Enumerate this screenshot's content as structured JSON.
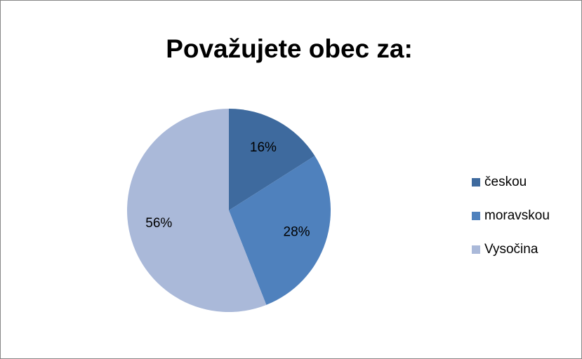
{
  "chart_data": {
    "type": "pie",
    "title": "Považujete obec za:",
    "categories": [
      "českou",
      "moravskou",
      "Vysočina"
    ],
    "values": [
      16,
      28,
      56
    ],
    "value_labels": [
      "16%",
      "28%",
      "56%"
    ],
    "colors": [
      "#3e6a9e",
      "#4f81bd",
      "#aab9d9"
    ],
    "legend": "right"
  }
}
